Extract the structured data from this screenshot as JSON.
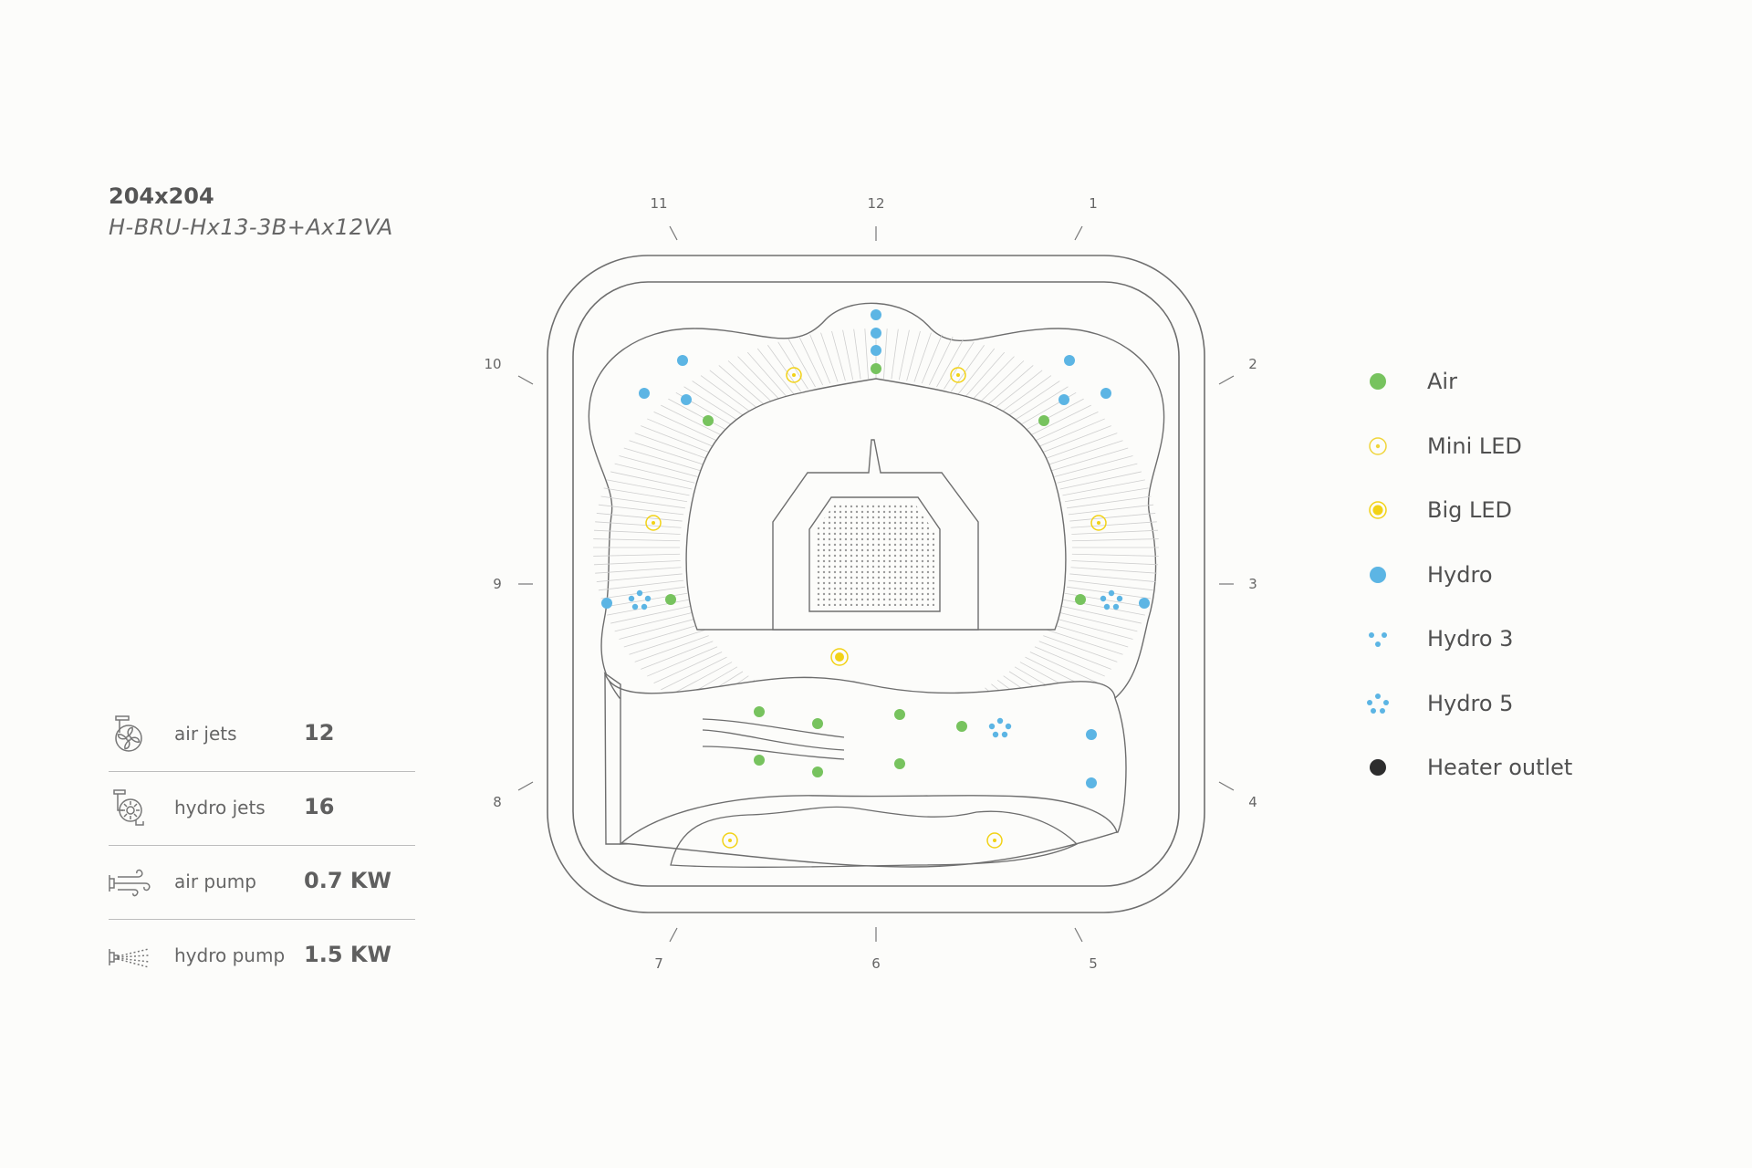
{
  "model": {
    "size": "204x204",
    "code": "H-BRU-Hx13-3B+Ax12VA"
  },
  "specs": [
    {
      "icon": "air-jets-icon",
      "label": "air jets",
      "value": "12"
    },
    {
      "icon": "hydro-jets-icon",
      "label": "hydro jets",
      "value": "16"
    },
    {
      "icon": "air-pump-icon",
      "label": "air pump",
      "value": "0.7 KW"
    },
    {
      "icon": "hydro-pump-icon",
      "label": "hydro pump",
      "value": "1.5 KW"
    }
  ],
  "clock_positions": [
    "11",
    "12",
    "1",
    "2",
    "3",
    "4",
    "5",
    "6",
    "7",
    "8",
    "9",
    "10"
  ],
  "legend": [
    {
      "label": "Air",
      "symbol": "air",
      "color": "#77c35e"
    },
    {
      "label": "Mini LED",
      "symbol": "mini-led",
      "color": "#f0d53a"
    },
    {
      "label": "Big LED",
      "symbol": "big-led",
      "color": "#f2d216"
    },
    {
      "label": "Hydro",
      "symbol": "hydro",
      "color": "#5cb5e4"
    },
    {
      "label": "Hydro 3",
      "symbol": "hydro-3",
      "color": "#5cb5e4"
    },
    {
      "label": "Hydro 5",
      "symbol": "hydro-5",
      "color": "#5cb5e4"
    },
    {
      "label": "Heater outlet",
      "symbol": "heater-outlet",
      "color": "#2d2d2d"
    }
  ],
  "colors": {
    "air": "#77c35e",
    "hydro": "#5cb5e4",
    "led": "#f2d216",
    "outline": "#6e6e6e",
    "background": "#fcfcfa"
  }
}
